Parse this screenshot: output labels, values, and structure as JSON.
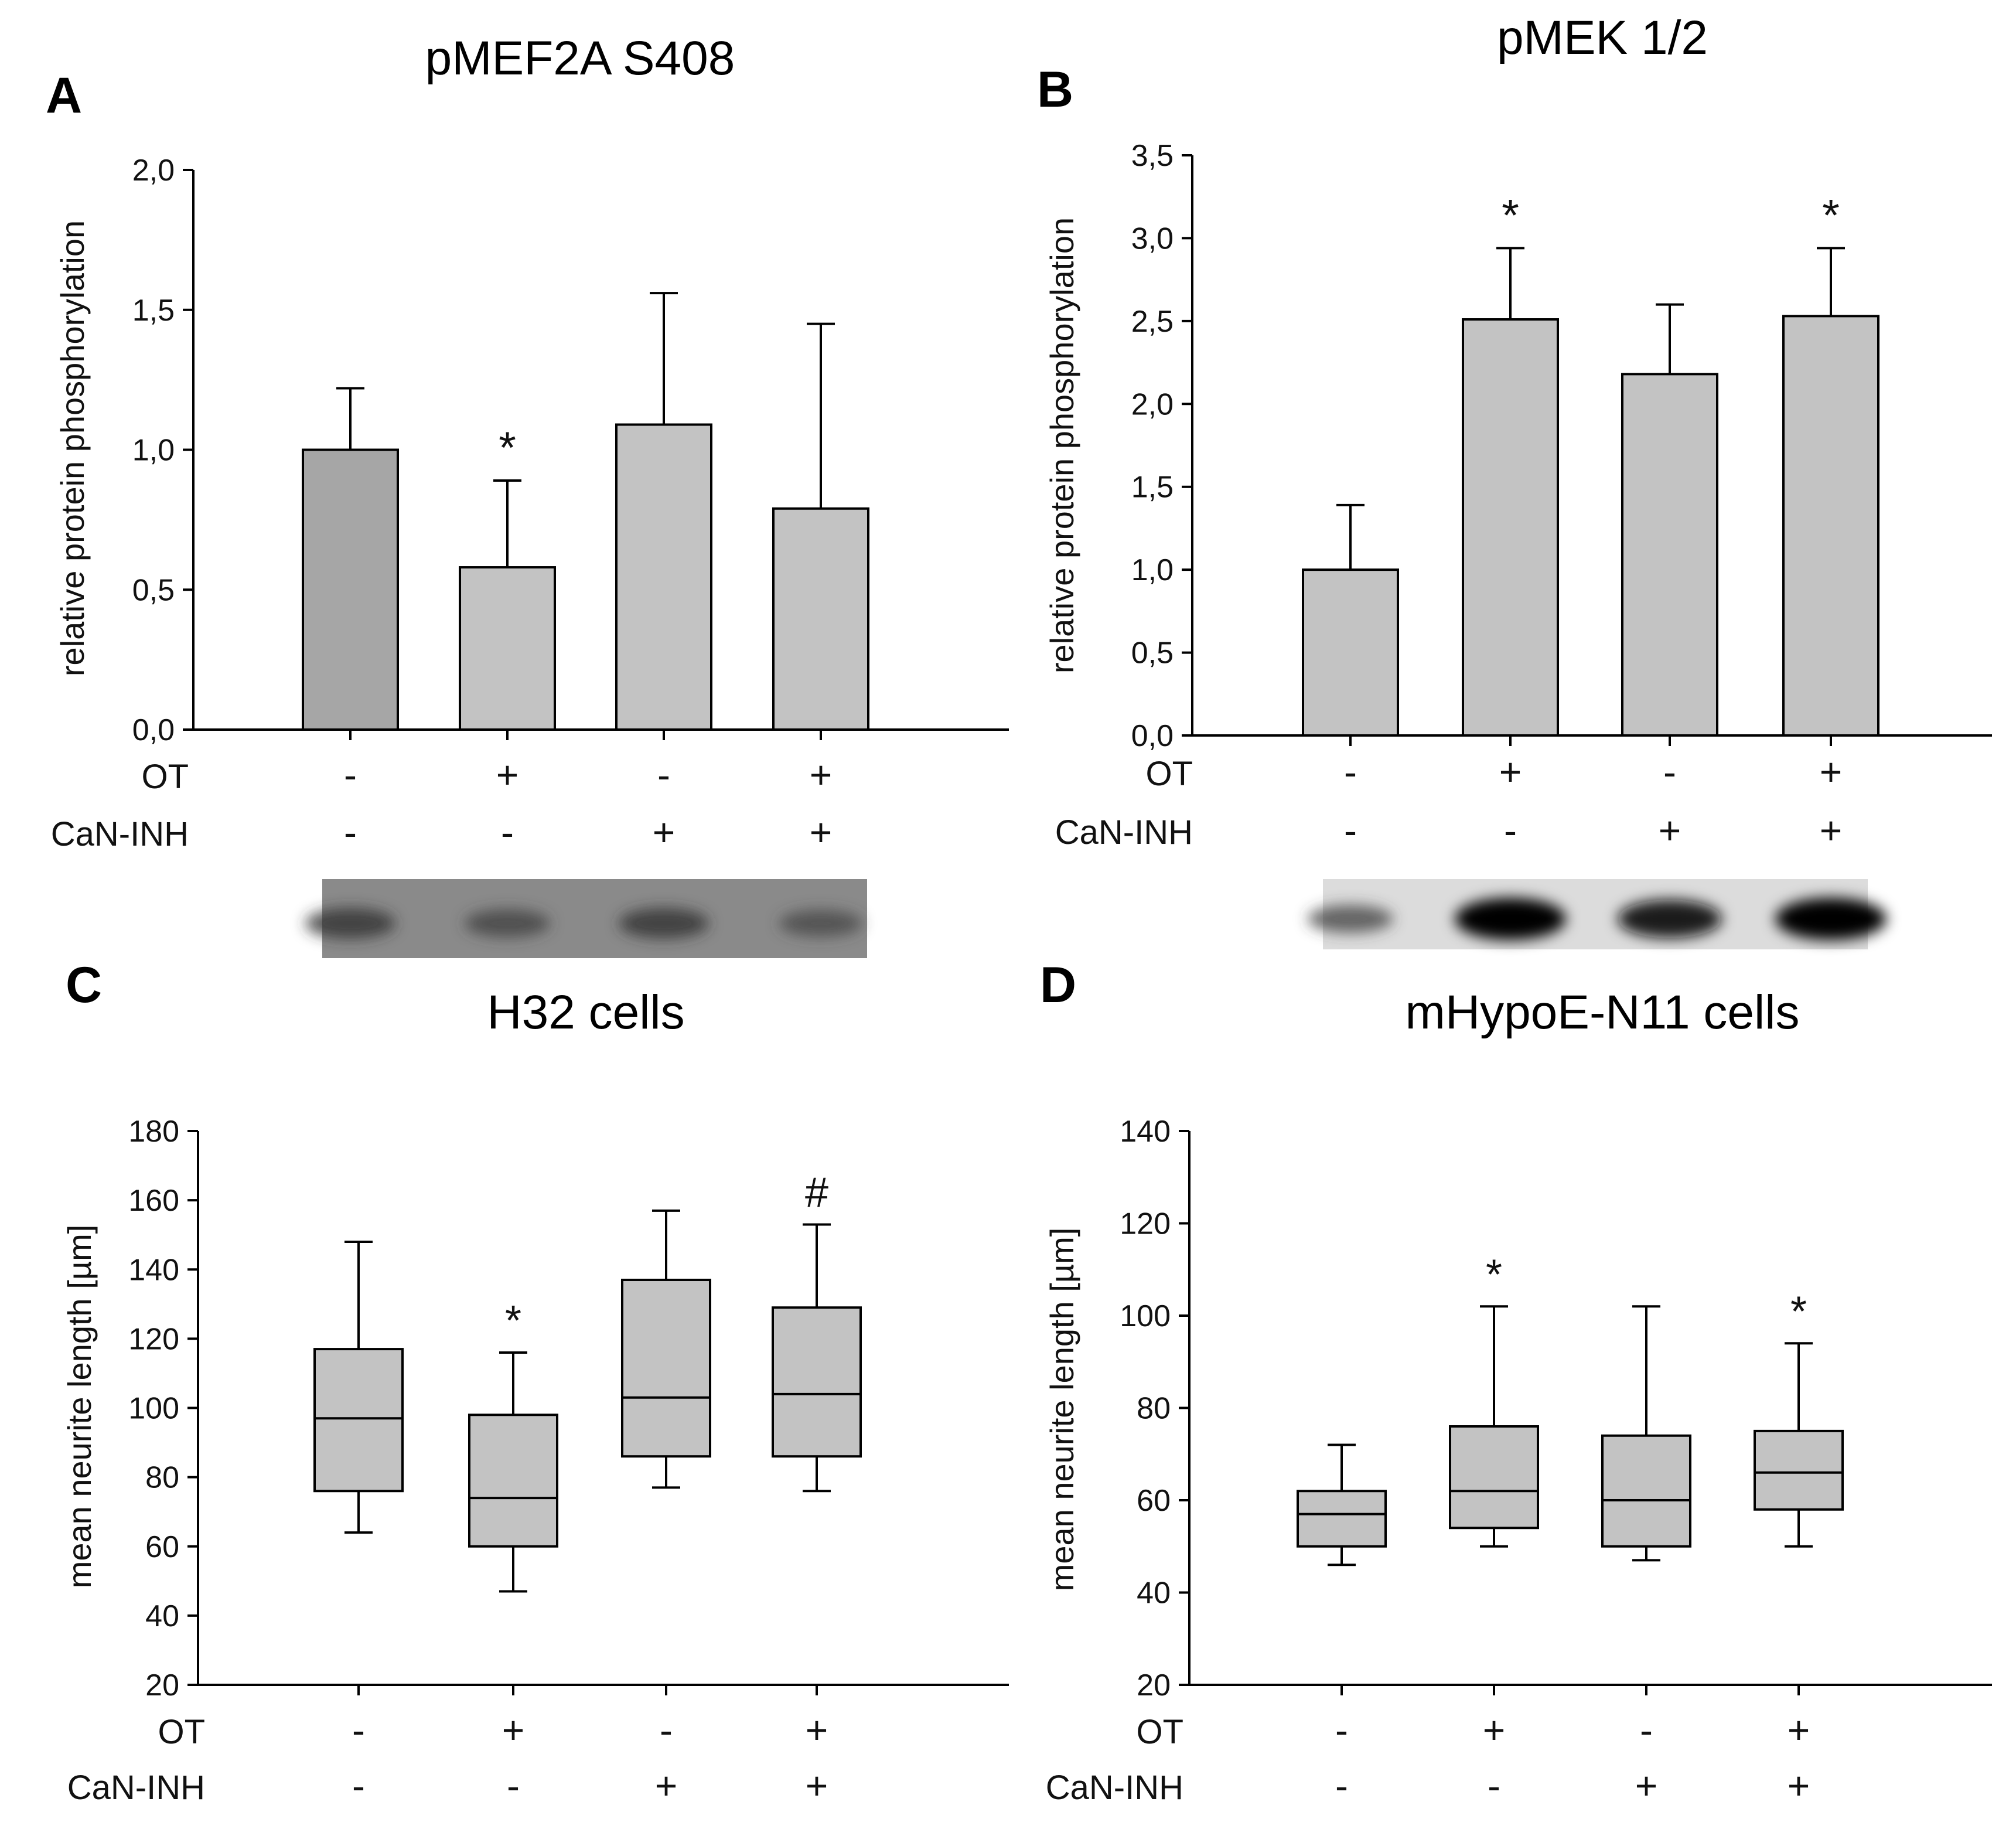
{
  "chart_data": [
    {
      "panel": "A",
      "type": "bar",
      "title": "pMEF2A S408",
      "ylabel": "relative protein phosphorylation",
      "ylim": [
        0,
        2.0
      ],
      "yticks": [
        "0,0",
        "0,5",
        "1,0",
        "1,5",
        "2,0"
      ],
      "ytick_values": [
        0,
        0.5,
        1.0,
        1.5,
        2.0
      ],
      "values": [
        1.0,
        0.58,
        1.09,
        0.79
      ],
      "errors": [
        0.22,
        0.31,
        0.47,
        0.66
      ],
      "bar_colors": [
        "#a6a6a6",
        "#c3c3c3",
        "#c3c3c3",
        "#c3c3c3"
      ],
      "annotations": [
        "",
        "*",
        "",
        ""
      ],
      "conditions": {
        "labels": [
          "OT",
          "CaN-INH"
        ],
        "rows": [
          [
            "-",
            "+",
            "-",
            "+"
          ],
          [
            "-",
            "-",
            "+",
            "+"
          ]
        ]
      },
      "blot": {
        "intensity": [
          0.55,
          0.45,
          0.55,
          0.4
        ]
      }
    },
    {
      "panel": "B",
      "type": "bar",
      "title": "pMEK 1/2",
      "ylabel": "relative protein phosphorylation",
      "ylim": [
        0,
        3.5
      ],
      "yticks": [
        "0,0",
        "0,5",
        "1,0",
        "1,5",
        "2,0",
        "2,5",
        "3,0",
        "3,5"
      ],
      "ytick_values": [
        0,
        0.5,
        1.0,
        1.5,
        2.0,
        2.5,
        3.0,
        3.5
      ],
      "values": [
        1.0,
        2.51,
        2.18,
        2.53
      ],
      "errors": [
        0.39,
        0.43,
        0.42,
        0.41
      ],
      "bar_colors": [
        "#c3c3c3",
        "#c3c3c3",
        "#c3c3c3",
        "#c3c3c3"
      ],
      "annotations": [
        "",
        "*",
        "",
        "*"
      ],
      "conditions": {
        "labels": [
          "OT",
          "CaN-INH"
        ],
        "rows": [
          [
            "-",
            "+",
            "-",
            "+"
          ],
          [
            "-",
            "-",
            "+",
            "+"
          ]
        ]
      },
      "blot": {
        "intensity": [
          0.45,
          1.0,
          0.85,
          1.0
        ]
      }
    },
    {
      "panel": "C",
      "type": "box",
      "title": "H32 cells",
      "ylabel": "mean neurite length [µm]",
      "ylim": [
        20,
        180
      ],
      "yticks": [
        "20",
        "40",
        "60",
        "80",
        "100",
        "120",
        "140",
        "160",
        "180"
      ],
      "ytick_values": [
        20,
        40,
        60,
        80,
        100,
        120,
        140,
        160,
        180
      ],
      "boxes": [
        {
          "min": 64,
          "q1": 76,
          "median": 97,
          "q3": 117,
          "max": 148
        },
        {
          "min": 47,
          "q1": 60,
          "median": 74,
          "q3": 98,
          "max": 116
        },
        {
          "min": 77,
          "q1": 86,
          "median": 103,
          "q3": 137,
          "max": 157
        },
        {
          "min": 76,
          "q1": 86,
          "median": 104,
          "q3": 129,
          "max": 153
        }
      ],
      "annotations": [
        "",
        "*",
        "",
        "#"
      ],
      "conditions": {
        "labels": [
          "OT",
          "CaN-INH"
        ],
        "rows": [
          [
            "-",
            "+",
            "-",
            "+"
          ],
          [
            "-",
            "-",
            "+",
            "+"
          ]
        ]
      }
    },
    {
      "panel": "D",
      "type": "box",
      "title": "mHypoE-N11 cells",
      "ylabel": "mean neurite length [µm]",
      "ylim": [
        20,
        140
      ],
      "yticks": [
        "20",
        "40",
        "60",
        "80",
        "100",
        "120",
        "140"
      ],
      "ytick_values": [
        20,
        40,
        60,
        80,
        100,
        120,
        140
      ],
      "boxes": [
        {
          "min": 46,
          "q1": 50,
          "median": 57,
          "q3": 62,
          "max": 72
        },
        {
          "min": 50,
          "q1": 54,
          "median": 62,
          "q3": 76,
          "max": 102
        },
        {
          "min": 47,
          "q1": 50,
          "median": 60,
          "q3": 74,
          "max": 102
        },
        {
          "min": 50,
          "q1": 58,
          "median": 66,
          "q3": 75,
          "max": 94
        }
      ],
      "annotations": [
        "",
        "*",
        "",
        "*"
      ],
      "conditions": {
        "labels": [
          "OT",
          "CaN-INH"
        ],
        "rows": [
          [
            "-",
            "+",
            "-",
            "+"
          ],
          [
            "-",
            "-",
            "+",
            "+"
          ]
        ]
      }
    }
  ]
}
